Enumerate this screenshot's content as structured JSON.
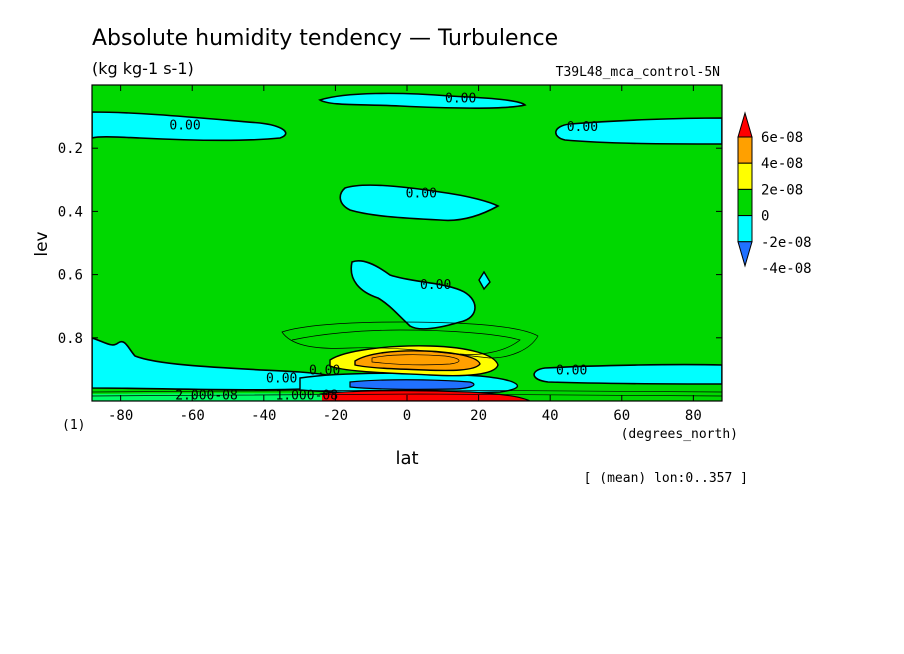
{
  "chart_data": {
    "type": "heatmap",
    "title": "Absolute humidity tendency — Turbulence",
    "subtitle": "(kg kg-1 s-1)",
    "experiment": "T39L48_mca_control-5N",
    "xlabel": "lat",
    "xunit": "(degrees_north)",
    "ylabel": "lev",
    "yunit": "(1)",
    "footnote": "[ (mean) lon:0..357 ]",
    "xlim": [
      -88,
      88
    ],
    "ylim": [
      1.0,
      0.0
    ],
    "x_ticks": [
      {
        "value": -80,
        "label": "-80"
      },
      {
        "value": -60,
        "label": "-60"
      },
      {
        "value": -40,
        "label": "-40"
      },
      {
        "value": -20,
        "label": "-20"
      },
      {
        "value": 0,
        "label": "0"
      },
      {
        "value": 20,
        "label": "20"
      },
      {
        "value": 40,
        "label": "40"
      },
      {
        "value": 60,
        "label": "60"
      },
      {
        "value": 80,
        "label": "80"
      }
    ],
    "y_ticks": [
      {
        "value": 0.2,
        "label": "0.2"
      },
      {
        "value": 0.4,
        "label": "0.4"
      },
      {
        "value": 0.6,
        "label": "0.6"
      },
      {
        "value": 0.8,
        "label": "0.8"
      }
    ],
    "colorbar": {
      "levels": [
        {
          "label": "6e-08",
          "value": 6e-08
        },
        {
          "label": "4e-08",
          "value": 4e-08
        },
        {
          "label": "2e-08",
          "value": 2e-08
        },
        {
          "label": "0",
          "value": 0
        },
        {
          "label": "-2e-08",
          "value": -2e-08
        },
        {
          "label": "-4e-08",
          "value": -4e-08
        }
      ],
      "colors": [
        "#2070ff",
        "#00ffff",
        "#00d800",
        "#ffff00",
        "#ffa000",
        "#ff0000"
      ]
    },
    "background_color": "#00d800",
    "contour_labels": [
      {
        "text": "0.00",
        "x": 15,
        "y": 0.04
      },
      {
        "text": "0.00",
        "x": -62,
        "y": 0.125
      },
      {
        "text": "0.00",
        "x": 49,
        "y": 0.13
      },
      {
        "text": "0.00",
        "x": 4,
        "y": 0.34
      },
      {
        "text": "0.00",
        "x": 8,
        "y": 0.63
      },
      {
        "text": "0.00",
        "x": 46,
        "y": 0.9
      },
      {
        "text": "0.00",
        "x": -35,
        "y": 0.925
      },
      {
        "text": "0.00",
        "x": -23,
        "y": 0.9
      },
      {
        "text": "2.000-08",
        "x": -56,
        "y": 0.98
      },
      {
        "text": "1.000-08",
        "x": -28,
        "y": 0.98
      }
    ]
  }
}
